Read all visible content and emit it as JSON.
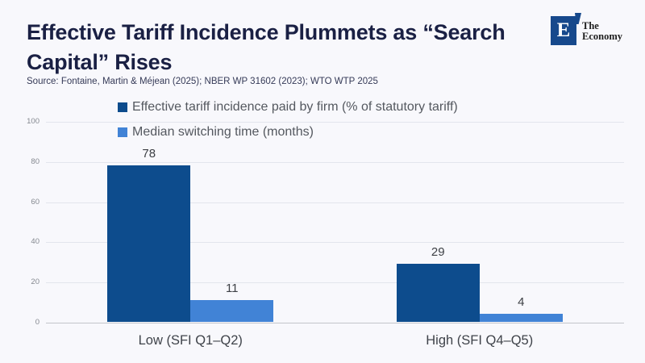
{
  "header": {
    "title": "Effective Tariff Incidence Plummets as “Search Capital” Rises",
    "source": "Source: Fontaine, Martin & Méjean (2025); NBER WP 31602 (2023); WTO WTP 2025"
  },
  "logo": {
    "mark": "E",
    "name_line1": "The",
    "name_line2": "Economy",
    "square_color": "#17498c"
  },
  "chart_data": {
    "type": "bar",
    "categories": [
      "Low (SFI Q1–Q2)",
      "High (SFI Q4–Q5)"
    ],
    "series": [
      {
        "name": "Effective tariff incidence paid by firm (% of statutory tariff)",
        "values": [
          78,
          29
        ],
        "color": "#0d4c8d"
      },
      {
        "name": "Median switching time (months)",
        "values": [
          11,
          4
        ],
        "color": "#4183d6"
      }
    ],
    "ylim": [
      0,
      100
    ],
    "yticks": [
      0,
      20,
      40,
      60,
      80,
      100
    ],
    "grid": true,
    "legend_position": "top-left-overlay"
  }
}
